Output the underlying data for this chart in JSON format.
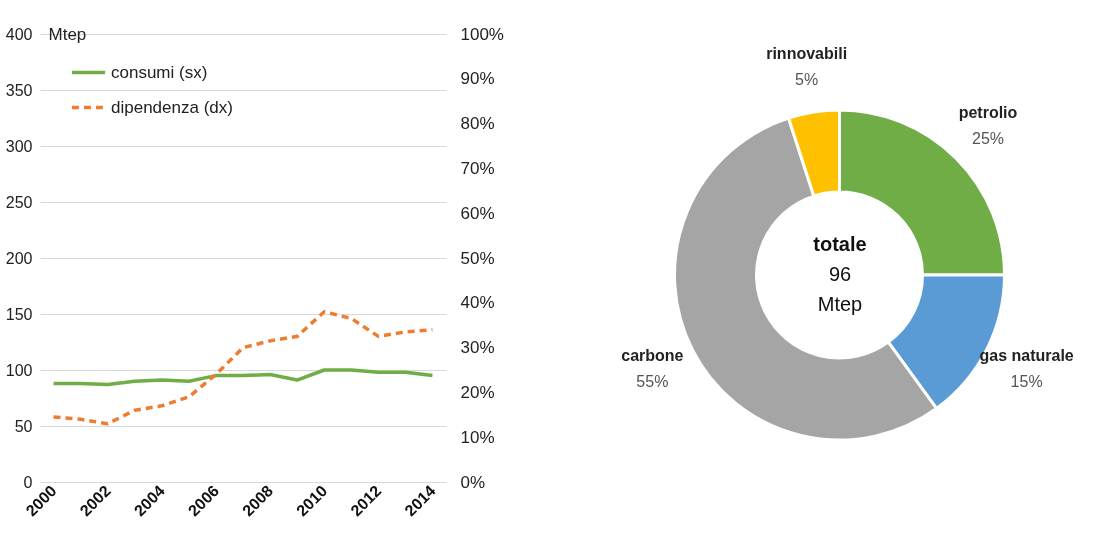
{
  "chart_data": [
    {
      "type": "line",
      "x": [
        2000,
        2001,
        2002,
        2003,
        2004,
        2005,
        2006,
        2007,
        2008,
        2009,
        2010,
        2011,
        2012,
        2013,
        2014
      ],
      "xlim": [
        1999.5,
        2014.5
      ],
      "xticks": [
        2000,
        2002,
        2004,
        2006,
        2008,
        2010,
        2012,
        2014
      ],
      "ylabel": "Mtep",
      "ylim": [
        0,
        400
      ],
      "yticks": [
        0,
        50,
        100,
        150,
        200,
        250,
        300,
        350,
        400
      ],
      "y2lim": [
        0,
        100
      ],
      "y2ticks": [
        {
          "value": 0,
          "label": "0%"
        },
        {
          "value": 10,
          "label": "10%"
        },
        {
          "value": 20,
          "label": "20%"
        },
        {
          "value": 30,
          "label": "30%"
        },
        {
          "value": 40,
          "label": "40%"
        },
        {
          "value": 50,
          "label": "50%"
        },
        {
          "value": 60,
          "label": "60%"
        },
        {
          "value": 70,
          "label": "70%"
        },
        {
          "value": 80,
          "label": "80%"
        },
        {
          "value": 90,
          "label": "90%"
        },
        {
          "value": 100,
          "label": "100%"
        }
      ],
      "grid": "y",
      "legend": "top left",
      "marker": "none",
      "series": [
        {
          "name": "consumi (sx)",
          "color": "#70ad47",
          "line_style": "solid",
          "values": [
            88,
            88,
            87,
            90,
            91,
            90,
            95,
            95,
            96,
            91,
            100,
            100,
            98,
            98,
            95
          ]
        },
        {
          "name": "dipendenza (dx)",
          "color": "#ed7d31",
          "line_style": "dashed",
          "axis": "y2",
          "values": [
            14.5,
            14,
            13,
            16,
            17,
            19,
            24,
            30,
            31.5,
            32.5,
            38,
            36.5,
            32.5,
            33.5,
            34
          ]
        }
      ]
    },
    {
      "type": "donut",
      "categories": [
        "petrolio",
        "gas naturale",
        "carbone",
        "rinnovabili"
      ],
      "values": [
        25,
        15,
        55,
        5
      ],
      "colors": [
        "#70ad47",
        "#5b9bd5",
        "#a5a5a5",
        "#ffc000"
      ],
      "value_labels": [
        "25%",
        "15%",
        "55%",
        "5%"
      ],
      "annotations": [
        "totale",
        "96",
        "Mtep"
      ]
    }
  ]
}
